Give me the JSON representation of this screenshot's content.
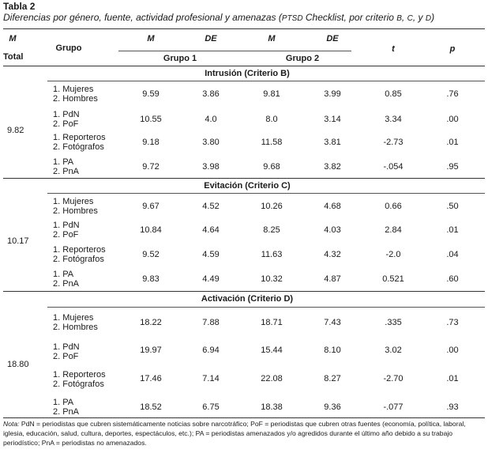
{
  "table": {
    "label": "Tabla 2",
    "caption_main": "Diferencias por género, fuente, actividad profesional y amenazas (",
    "caption_ptsd": "PTSD",
    "caption_mid": " Checklist, por criterio ",
    "caption_b": "B",
    "caption_c": "C",
    "caption_d": "D",
    "caption_end": ")",
    "header": {
      "m_total_a": "M",
      "m_total_b": "Total",
      "grupo": "Grupo",
      "m1": "M",
      "de1": "DE",
      "m2": "M",
      "de2": "DE",
      "t": "t",
      "p": "p",
      "grupo1": "Grupo 1",
      "grupo2": "Grupo 2"
    },
    "sections": [
      {
        "title": "Intrusión (Criterio B)",
        "m_total": "9.82",
        "rows": [
          {
            "g1": "1. Mujeres",
            "g2": "2. Hombres",
            "m1": "9.59",
            "de1": "3.86",
            "m2": "9.81",
            "de2": "3.99",
            "t": "0.85",
            "p": ".76"
          },
          {
            "g1": "1. PdN",
            "g2": "2. PoF",
            "m1": "10.55",
            "de1": "4.0",
            "m2": "8.0",
            "de2": "3.14",
            "t": "3.34",
            "p": ".00"
          },
          {
            "g1": "1. Reporteros",
            "g2": "2. Fotógrafos",
            "m1": "9.18",
            "de1": "3.80",
            "m2": "11.58",
            "de2": "3.81",
            "t": "-2.73",
            "p": ".01"
          },
          {
            "g1": "1. PA",
            "g2": "2. PnA",
            "m1": "9.72",
            "de1": "3.98",
            "m2": "9.68",
            "de2": "3.82",
            "t": "-.054",
            "p": ".95"
          }
        ]
      },
      {
        "title": "Evitación (Criterio C)",
        "m_total": "10.17",
        "rows": [
          {
            "g1": "1. Mujeres",
            "g2": "2. Hombres",
            "m1": "9.67",
            "de1": "4.52",
            "m2": "10.26",
            "de2": "4.68",
            "t": "0.66",
            "p": ".50"
          },
          {
            "g1": "1. PdN",
            "g2": "2. PoF",
            "m1": "10.84",
            "de1": "4.64",
            "m2": "8.25",
            "de2": "4.03",
            "t": "2.84",
            "p": ".01"
          },
          {
            "g1": "1. Reporteros",
            "g2": "2. Fotógrafos",
            "m1": "9.52",
            "de1": "4.59",
            "m2": "11.63",
            "de2": "4.32",
            "t": "-2.0",
            "p": ".04"
          },
          {
            "g1": "1. PA",
            "g2": "2. PnA",
            "m1": "9.83",
            "de1": "4.49",
            "m2": "10.32",
            "de2": "4.87",
            "t": "0.521",
            "p": ".60"
          }
        ]
      },
      {
        "title": "Activación (Criterio D)",
        "m_total": "18.80",
        "rows": [
          {
            "g1": "1. Mujeres",
            "g2": "2. Hombres",
            "m1": "18.22",
            "de1": "7.88",
            "m2": "18.71",
            "de2": "7.43",
            "t": ".335",
            "p": ".73"
          },
          {
            "g1": "1. PdN",
            "g2": "2. PoF",
            "m1": "19.97",
            "de1": "6.94",
            "m2": "15.44",
            "de2": "8.10",
            "t": "3.02",
            "p": ".00"
          },
          {
            "g1": "1. Reporteros",
            "g2": "2. Fotógrafos",
            "m1": "17.46",
            "de1": "7.14",
            "m2": "22.08",
            "de2": "8.27",
            "t": "-2.70",
            "p": ".01"
          },
          {
            "g1": "1. PA",
            "g2": "2. PnA",
            "m1": "18.52",
            "de1": "6.75",
            "m2": "18.38",
            "de2": "9.36",
            "t": "-.077",
            "p": ".93"
          }
        ]
      }
    ],
    "note_label": "Nota:",
    "note_text": " PdN = periodistas que cubren sistemáticamente noticias sobre narcotráfico; PoF = periodistas que cubren otras fuentes (economía, política, laboral, iglesia, educación, salud, cultura, deportes, espectáculos, etc.); PA = periodistas amenazados y/o agredidos durante el último año debido a su trabajo periodístico; PnA = periodistas no amenazados."
  }
}
